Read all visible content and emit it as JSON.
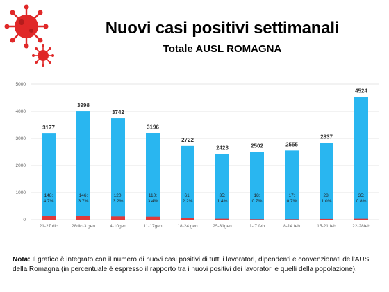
{
  "header": {
    "title": "Nuovi casi positivi settimanali",
    "subtitle": "Totale AUSL ROMAGNA"
  },
  "note": {
    "label": "Nota:",
    "text": " Il grafico è integrato con il numero di nuovi casi positivi di tutti i lavoratori, dipendenti e convenzionati dell'AUSL della Romagna (in percentuale è espresso il rapporto tra i nuovi positivi dei lavoratori e quelli della popolazione)."
  },
  "colors": {
    "total_bar": "#29b6f0",
    "worker_bar": "#e03a3a",
    "virus": "#e02828",
    "grid": "#e6e6e6"
  },
  "chart_data": {
    "type": "bar",
    "title": "Nuovi casi positivi settimanali",
    "subtitle": "Totale AUSL ROMAGNA",
    "categories": [
      "21-27 dic",
      "28dic-3 gen",
      "4-10gen",
      "11-17gen",
      "18-24 gen",
      "25-31gen",
      "1- 7 feb",
      "8-14 feb",
      "15-21 feb",
      "22-28feb"
    ],
    "series": [
      {
        "values": [
          3177,
          3998,
          3742,
          3196,
          2722,
          2423,
          2502,
          2555,
          2837,
          4524
        ]
      },
      {
        "values": [
          148,
          146,
          120,
          110,
          61,
          35,
          18,
          17,
          28,
          35
        ],
        "percent": [
          "4.7%",
          "3.7%",
          "3.2%",
          "3.4%",
          "2.2%",
          "1.4%",
          "0.7%",
          "0.7%",
          "1.0%",
          "0.8%"
        ]
      }
    ],
    "ylim": [
      0,
      5000
    ],
    "yticks": [
      0,
      1000,
      2000,
      3000,
      4000,
      5000
    ],
    "grid": true,
    "legend": "none"
  }
}
